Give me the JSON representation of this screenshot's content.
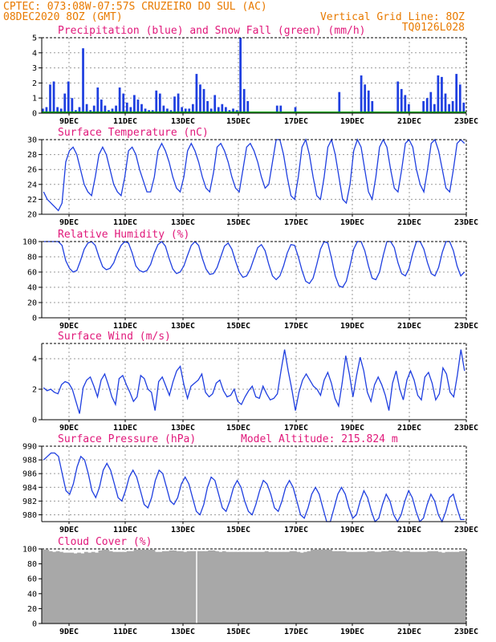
{
  "header": {
    "left_line1": "CPTEC:   073:08W-07:57S  CRUZEIRO DO SUL (AC)",
    "left_line2": "08DEC2020 8OZ (GMT)",
    "right_line2": "Vertical Grid Line: 8OZ",
    "right_line3": "TQ0126L028"
  },
  "colors": {
    "header": "#e87a00",
    "title": "#e0187a",
    "series": "#1f3fe0",
    "snow": "#00a000",
    "cloud": "#a8a8a8"
  },
  "x_ticks": [
    "9DEC",
    "11DEC",
    "13DEC",
    "15DEC",
    "17DEC",
    "19DEC",
    "21DEC",
    "23DEC"
  ],
  "chart_data": [
    {
      "type": "bar",
      "title": "Precipitation (blue) and Snow Fall (green) (mm/h)",
      "ylim": [
        0,
        5
      ],
      "yticks": [
        0,
        1,
        2,
        3,
        4,
        5
      ],
      "series": [
        {
          "name": "Precipitation",
          "values": [
            0.3,
            0.4,
            1.9,
            2.1,
            0.4,
            0.3,
            1.3,
            2.1,
            1.0,
            0.2,
            0.4,
            4.3,
            0.6,
            0.2,
            0.5,
            1.7,
            0.9,
            0.5,
            0.2,
            0.3,
            0.5,
            1.7,
            1.3,
            0.7,
            0.4,
            1.2,
            0.9,
            0.6,
            0.3,
            0.2,
            0.2,
            1.5,
            1.3,
            0.5,
            0.3,
            0.2,
            1.1,
            1.3,
            0.4,
            0.3,
            0.3,
            0.6,
            2.6,
            1.9,
            1.6,
            0.8,
            0.3,
            1.2,
            0.4,
            0.6,
            0.4,
            0.2,
            0.3,
            0.2,
            5.0,
            1.6,
            0.8,
            0,
            0,
            0,
            0,
            0,
            0,
            0,
            0.5,
            0.5,
            0,
            0,
            0,
            0.4,
            0,
            0,
            0,
            0,
            0,
            0,
            0,
            0,
            0,
            0,
            0,
            1.4,
            0,
            0,
            0,
            0,
            0,
            2.5,
            1.9,
            1.5,
            0.8,
            0,
            0,
            0,
            0,
            0,
            0,
            2.1,
            1.6,
            1.2,
            0.6,
            0,
            0,
            0,
            0.8,
            1.0,
            1.4,
            0.6,
            2.5,
            2.4,
            1.3,
            0.6,
            0.8,
            2.6,
            1.9,
            0.7
          ]
        },
        {
          "name": "Snow Fall",
          "values": [
            0,
            0,
            0,
            0,
            0,
            0,
            0,
            0,
            0,
            0,
            0,
            0,
            0,
            0,
            0,
            0,
            0,
            0,
            0,
            0,
            0,
            0,
            0,
            0,
            0,
            0,
            0,
            0,
            0,
            0,
            0,
            0,
            0,
            0,
            0,
            0,
            0,
            0,
            0,
            0,
            0,
            0,
            0,
            0,
            0,
            0,
            0,
            0,
            0,
            0,
            0,
            0,
            0,
            0,
            0,
            0,
            0,
            0,
            0,
            0,
            0,
            0,
            0,
            0,
            0,
            0,
            0,
            0,
            0,
            0,
            0,
            0,
            0,
            0,
            0,
            0,
            0,
            0,
            0,
            0,
            0,
            0,
            0,
            0,
            0,
            0,
            0,
            0,
            0,
            0,
            0,
            0,
            0,
            0,
            0,
            0,
            0,
            0,
            0,
            0,
            0,
            0,
            0,
            0,
            0,
            0,
            0,
            0,
            0,
            0,
            0,
            0,
            0,
            0,
            0,
            0,
            0,
            0,
            0
          ]
        }
      ]
    },
    {
      "type": "line",
      "title": "Surface Temperature (nC)",
      "ylim": [
        20,
        30
      ],
      "yticks": [
        20,
        22,
        24,
        26,
        28,
        30
      ],
      "values": [
        23,
        22,
        21.5,
        21,
        20.5,
        21.5,
        27,
        28.5,
        29,
        28,
        26,
        24,
        23,
        22.5,
        25,
        28,
        29,
        28,
        26,
        24,
        23,
        22.5,
        25,
        28.5,
        29,
        28,
        26,
        24.5,
        23,
        23,
        25,
        28.5,
        29.5,
        28.5,
        27,
        25,
        23.5,
        23,
        25,
        28.5,
        29.5,
        28.5,
        27,
        25,
        23.5,
        23,
        25.5,
        29,
        29.5,
        28.5,
        27,
        25,
        23.5,
        23,
        26,
        29,
        29.5,
        28.5,
        27,
        25,
        23.5,
        24,
        27,
        30,
        30,
        28,
        25,
        22.5,
        22,
        25,
        29,
        30,
        28,
        25,
        22.5,
        22,
        25,
        29,
        30,
        28,
        25,
        22,
        21.5,
        24,
        28.5,
        30,
        29,
        26,
        23,
        22,
        25,
        29,
        30,
        29,
        26,
        23.5,
        23,
        26,
        29.5,
        30,
        29,
        26,
        24,
        23,
        26,
        29.5,
        30,
        28.5,
        26,
        23.5,
        23,
        26,
        29.5,
        30,
        29.5
      ]
    },
    {
      "type": "line",
      "title": "Relative Humidity (%)",
      "ylim": [
        0,
        100
      ],
      "yticks": [
        0,
        20,
        40,
        60,
        80,
        100
      ],
      "values": [
        100,
        100,
        100,
        100,
        100,
        95,
        75,
        65,
        60,
        62,
        75,
        90,
        98,
        100,
        95,
        80,
        67,
        63,
        65,
        72,
        85,
        95,
        100,
        98,
        85,
        68,
        62,
        60,
        62,
        70,
        85,
        96,
        100,
        94,
        78,
        64,
        58,
        60,
        68,
        82,
        95,
        100,
        95,
        78,
        64,
        57,
        58,
        66,
        80,
        94,
        98,
        90,
        74,
        60,
        53,
        55,
        64,
        78,
        92,
        96,
        88,
        70,
        55,
        50,
        55,
        68,
        85,
        96,
        95,
        80,
        62,
        48,
        45,
        52,
        70,
        90,
        100,
        98,
        78,
        55,
        42,
        40,
        48,
        68,
        90,
        100,
        100,
        88,
        68,
        52,
        50,
        60,
        82,
        100,
        100,
        92,
        72,
        58,
        55,
        65,
        85,
        100,
        100,
        90,
        72,
        58,
        55,
        66,
        86,
        100,
        100,
        88,
        68,
        55,
        60
      ]
    },
    {
      "type": "line",
      "title": "Surface Wind (m/s)",
      "ylim": [
        0,
        5
      ],
      "yticks": [
        0,
        2,
        4
      ],
      "values": [
        2.1,
        1.9,
        2.0,
        1.8,
        1.7,
        2.3,
        2.5,
        2.4,
        2.0,
        1.2,
        0.4,
        2.1,
        2.6,
        2.8,
        2.2,
        1.5,
        2.6,
        3.0,
        2.3,
        1.5,
        1.0,
        2.7,
        2.9,
        2.3,
        1.8,
        1.2,
        1.5,
        2.9,
        2.7,
        2.0,
        1.8,
        0.6,
        2.5,
        2.8,
        2.2,
        1.6,
        2.5,
        3.2,
        3.5,
        2.3,
        1.4,
        2.2,
        2.4,
        2.6,
        3.0,
        1.8,
        1.5,
        1.7,
        2.4,
        2.6,
        1.9,
        1.5,
        1.6,
        2.0,
        1.2,
        1.0,
        1.5,
        1.9,
        2.2,
        1.5,
        1.4,
        2.2,
        1.7,
        1.3,
        1.4,
        1.7,
        3.2,
        4.6,
        3.2,
        2.0,
        0.6,
        1.8,
        2.6,
        3.0,
        2.6,
        2.2,
        2.0,
        1.6,
        2.6,
        3.1,
        2.4,
        1.4,
        0.9,
        2.4,
        4.2,
        3.0,
        1.5,
        2.9,
        4.1,
        3.2,
        1.8,
        1.2,
        2.3,
        2.8,
        2.3,
        1.6,
        0.6,
        2.4,
        3.2,
        2.0,
        1.3,
        2.6,
        3.2,
        2.6,
        1.6,
        1.3,
        2.8,
        3.1,
        2.4,
        1.3,
        1.7,
        3.4,
        3.0,
        1.8,
        1.5,
        2.9,
        4.6,
        3.2
      ]
    },
    {
      "type": "line",
      "title": "Surface Pressure (hPa)",
      "annotation": "Model Altitude: 215.824 m",
      "ylim": [
        979,
        990
      ],
      "yticks": [
        980,
        982,
        984,
        986,
        988,
        990
      ],
      "values": [
        988,
        988.5,
        989,
        989,
        988.5,
        986,
        983.5,
        983,
        984.5,
        987,
        988.5,
        988,
        986,
        983.5,
        982.5,
        984,
        986.5,
        987.5,
        986.5,
        984.5,
        982.5,
        982,
        983.5,
        985.5,
        986.5,
        985.5,
        983.5,
        981.5,
        981,
        982.5,
        985,
        986.5,
        986,
        984,
        982,
        981.5,
        982.5,
        984.5,
        985.5,
        984.5,
        982.5,
        980.5,
        980,
        981.5,
        984,
        985.5,
        985,
        983,
        981,
        980.5,
        982,
        984,
        985,
        984,
        982,
        980.5,
        980,
        981.5,
        983.5,
        985,
        984.5,
        983,
        981,
        980.5,
        982,
        984,
        985,
        984,
        982,
        980,
        979.5,
        981,
        983,
        984,
        983,
        981,
        979,
        979,
        981,
        983,
        984,
        983,
        981,
        979.5,
        980,
        982,
        983.5,
        982.5,
        980.5,
        979,
        979.5,
        981.5,
        983,
        982,
        980,
        979,
        980,
        982,
        983.5,
        982.5,
        980.5,
        979,
        979.5,
        981.5,
        983,
        982,
        980,
        979,
        980.5,
        982.5,
        983,
        981,
        979.3,
        979.3
      ]
    },
    {
      "type": "area",
      "title": "Cloud Cover (%)",
      "ylim": [
        0,
        100
      ],
      "yticks": [
        0,
        20,
        40,
        60,
        80,
        100
      ],
      "values": [
        99,
        99,
        97,
        96,
        97,
        96,
        95,
        95,
        95,
        94,
        95,
        94,
        96,
        95,
        96,
        95,
        98,
        99,
        99,
        97,
        96,
        96,
        96,
        96,
        97,
        97,
        99,
        99,
        99,
        99,
        99,
        99,
        96,
        96,
        97,
        97,
        98,
        98,
        97,
        97,
        96,
        97,
        97,
        97,
        97,
        97,
        97,
        98,
        98,
        97,
        96,
        97,
        96,
        96,
        96,
        96,
        96,
        96,
        96,
        96,
        96,
        96,
        96,
        97,
        96,
        96,
        96,
        96,
        96,
        96,
        97,
        97,
        96,
        95,
        96,
        97,
        99,
        99,
        99,
        99,
        99,
        99,
        97,
        97,
        97,
        97,
        96,
        96,
        96,
        96,
        96,
        96,
        97,
        97,
        96,
        96,
        97,
        97,
        98,
        98,
        97,
        96,
        97,
        97,
        96,
        96,
        96,
        96,
        96,
        97,
        97,
        97,
        96,
        95,
        96,
        96,
        96,
        96,
        97,
        97
      ]
    }
  ]
}
